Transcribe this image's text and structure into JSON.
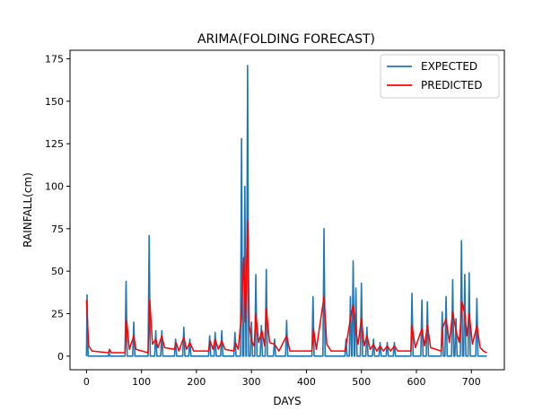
{
  "chart_data": {
    "type": "line",
    "title": "ARIMA(FOLDING FORECAST)",
    "xlabel": "DAYS",
    "ylabel": "RAINFALL(cm)",
    "xlim": [
      -30,
      760
    ],
    "ylim": [
      -8,
      180
    ],
    "x_ticks": [
      0,
      100,
      200,
      300,
      400,
      500,
      600,
      700
    ],
    "y_ticks": [
      0,
      25,
      50,
      75,
      100,
      125,
      150,
      175
    ],
    "grid": false,
    "legend_position": "top-right",
    "series": [
      {
        "name": "EXPECTED",
        "color": "#1f77b4",
        "points": [
          [
            0,
            0
          ],
          [
            1,
            36
          ],
          [
            3,
            0
          ],
          [
            40,
            0
          ],
          [
            41,
            3
          ],
          [
            42,
            0
          ],
          [
            70,
            0
          ],
          [
            72,
            44
          ],
          [
            74,
            0
          ],
          [
            84,
            0
          ],
          [
            86,
            20
          ],
          [
            88,
            0
          ],
          [
            112,
            0
          ],
          [
            114,
            71
          ],
          [
            116,
            0
          ],
          [
            124,
            0
          ],
          [
            126,
            15
          ],
          [
            128,
            0
          ],
          [
            135,
            0
          ],
          [
            137,
            15
          ],
          [
            139,
            0
          ],
          [
            160,
            0
          ],
          [
            162,
            10
          ],
          [
            164,
            0
          ],
          [
            175,
            0
          ],
          [
            177,
            17
          ],
          [
            179,
            0
          ],
          [
            186,
            0
          ],
          [
            188,
            10
          ],
          [
            190,
            0
          ],
          [
            222,
            0
          ],
          [
            224,
            12
          ],
          [
            226,
            0
          ],
          [
            232,
            0
          ],
          [
            234,
            14
          ],
          [
            236,
            0
          ],
          [
            244,
            0
          ],
          [
            246,
            15
          ],
          [
            248,
            0
          ],
          [
            268,
            0
          ],
          [
            270,
            14
          ],
          [
            272,
            0
          ],
          [
            280,
            0
          ],
          [
            282,
            128
          ],
          [
            284,
            0
          ],
          [
            286,
            0
          ],
          [
            288,
            100
          ],
          [
            290,
            0
          ],
          [
            291,
            0
          ],
          [
            293,
            171
          ],
          [
            295,
            0
          ],
          [
            298,
            0
          ],
          [
            300,
            20
          ],
          [
            302,
            0
          ],
          [
            306,
            0
          ],
          [
            308,
            48
          ],
          [
            310,
            0
          ],
          [
            316,
            0
          ],
          [
            318,
            18
          ],
          [
            320,
            0
          ],
          [
            325,
            0
          ],
          [
            327,
            51
          ],
          [
            329,
            0
          ],
          [
            340,
            0
          ],
          [
            342,
            10
          ],
          [
            344,
            0
          ],
          [
            362,
            0
          ],
          [
            364,
            21
          ],
          [
            366,
            0
          ],
          [
            410,
            0
          ],
          [
            412,
            35
          ],
          [
            414,
            0
          ],
          [
            430,
            0
          ],
          [
            432,
            75
          ],
          [
            434,
            0
          ],
          [
            470,
            0
          ],
          [
            472,
            10
          ],
          [
            474,
            0
          ],
          [
            478,
            0
          ],
          [
            480,
            35
          ],
          [
            482,
            0
          ],
          [
            483,
            0
          ],
          [
            485,
            56
          ],
          [
            487,
            0
          ],
          [
            488,
            0
          ],
          [
            490,
            40
          ],
          [
            492,
            0
          ],
          [
            498,
            0
          ],
          [
            500,
            43
          ],
          [
            502,
            0
          ],
          [
            508,
            0
          ],
          [
            510,
            17
          ],
          [
            512,
            0
          ],
          [
            520,
            0
          ],
          [
            522,
            10
          ],
          [
            524,
            0
          ],
          [
            532,
            0
          ],
          [
            534,
            8
          ],
          [
            536,
            0
          ],
          [
            545,
            0
          ],
          [
            547,
            8
          ],
          [
            549,
            0
          ],
          [
            558,
            0
          ],
          [
            560,
            8
          ],
          [
            562,
            0
          ],
          [
            590,
            0
          ],
          [
            592,
            37
          ],
          [
            594,
            0
          ],
          [
            608,
            0
          ],
          [
            610,
            33
          ],
          [
            612,
            0
          ],
          [
            618,
            0
          ],
          [
            620,
            32
          ],
          [
            622,
            0
          ],
          [
            645,
            0
          ],
          [
            647,
            26
          ],
          [
            649,
            0
          ],
          [
            652,
            0
          ],
          [
            654,
            35
          ],
          [
            656,
            0
          ],
          [
            664,
            0
          ],
          [
            666,
            45
          ],
          [
            668,
            0
          ],
          [
            670,
            0
          ],
          [
            672,
            22
          ],
          [
            674,
            0
          ],
          [
            680,
            0
          ],
          [
            682,
            68
          ],
          [
            684,
            0
          ],
          [
            686,
            0
          ],
          [
            688,
            48
          ],
          [
            690,
            0
          ],
          [
            694,
            0
          ],
          [
            696,
            49
          ],
          [
            698,
            0
          ],
          [
            708,
            0
          ],
          [
            710,
            34
          ],
          [
            712,
            0
          ],
          [
            728,
            0
          ]
        ]
      },
      {
        "name": "PREDICTED",
        "color": "#ff0000",
        "points": [
          [
            0,
            33
          ],
          [
            4,
            6
          ],
          [
            10,
            3
          ],
          [
            40,
            2
          ],
          [
            42,
            4
          ],
          [
            45,
            2
          ],
          [
            70,
            2
          ],
          [
            73,
            21
          ],
          [
            78,
            4
          ],
          [
            86,
            12
          ],
          [
            90,
            4
          ],
          [
            112,
            2
          ],
          [
            115,
            33
          ],
          [
            120,
            7
          ],
          [
            126,
            10
          ],
          [
            130,
            5
          ],
          [
            137,
            12
          ],
          [
            142,
            5
          ],
          [
            160,
            4
          ],
          [
            163,
            8
          ],
          [
            168,
            3
          ],
          [
            177,
            11
          ],
          [
            182,
            4
          ],
          [
            188,
            8
          ],
          [
            195,
            3
          ],
          [
            222,
            3
          ],
          [
            225,
            9
          ],
          [
            230,
            4
          ],
          [
            234,
            10
          ],
          [
            240,
            4
          ],
          [
            246,
            9
          ],
          [
            252,
            4
          ],
          [
            268,
            3
          ],
          [
            271,
            8
          ],
          [
            276,
            4
          ],
          [
            282,
            25
          ],
          [
            286,
            58
          ],
          [
            289,
            20
          ],
          [
            293,
            80
          ],
          [
            296,
            18
          ],
          [
            300,
            9
          ],
          [
            305,
            6
          ],
          [
            308,
            25
          ],
          [
            313,
            8
          ],
          [
            319,
            15
          ],
          [
            324,
            6
          ],
          [
            327,
            28
          ],
          [
            333,
            8
          ],
          [
            342,
            7
          ],
          [
            350,
            3
          ],
          [
            364,
            12
          ],
          [
            370,
            3
          ],
          [
            410,
            3
          ],
          [
            413,
            16
          ],
          [
            418,
            4
          ],
          [
            432,
            35
          ],
          [
            437,
            7
          ],
          [
            445,
            3
          ],
          [
            470,
            3
          ],
          [
            473,
            8
          ],
          [
            480,
            22
          ],
          [
            485,
            30
          ],
          [
            490,
            15
          ],
          [
            494,
            7
          ],
          [
            500,
            22
          ],
          [
            505,
            6
          ],
          [
            510,
            12
          ],
          [
            516,
            4
          ],
          [
            522,
            7
          ],
          [
            528,
            3
          ],
          [
            534,
            6
          ],
          [
            540,
            3
          ],
          [
            547,
            6
          ],
          [
            553,
            3
          ],
          [
            560,
            6
          ],
          [
            566,
            3
          ],
          [
            590,
            3
          ],
          [
            592,
            18
          ],
          [
            598,
            5
          ],
          [
            610,
            16
          ],
          [
            615,
            6
          ],
          [
            620,
            18
          ],
          [
            626,
            5
          ],
          [
            645,
            3
          ],
          [
            648,
            17
          ],
          [
            654,
            22
          ],
          [
            660,
            8
          ],
          [
            666,
            26
          ],
          [
            672,
            15
          ],
          [
            678,
            8
          ],
          [
            683,
            32
          ],
          [
            688,
            25
          ],
          [
            692,
            12
          ],
          [
            696,
            25
          ],
          [
            702,
            7
          ],
          [
            710,
            18
          ],
          [
            716,
            5
          ],
          [
            722,
            3
          ],
          [
            728,
            2
          ]
        ]
      }
    ]
  }
}
